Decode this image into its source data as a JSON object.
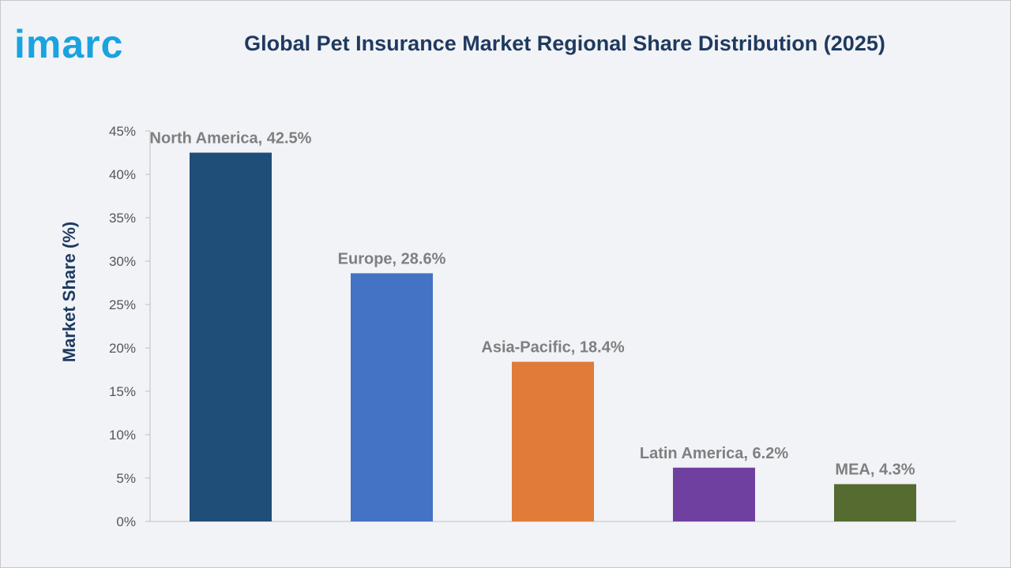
{
  "brand": {
    "logo_text": "imarc",
    "logo_color": "#1aa3df"
  },
  "chart_data": {
    "type": "bar",
    "title": "Global Pet Insurance Market Regional Share Distribution (2025)",
    "xlabel": "",
    "ylabel": "Market Share (%)",
    "ylim": [
      0,
      45
    ],
    "yticks": [
      0,
      5,
      10,
      15,
      20,
      25,
      30,
      35,
      40,
      45
    ],
    "ytick_labels": [
      "0%",
      "5%",
      "10%",
      "15%",
      "20%",
      "25%",
      "30%",
      "35%",
      "40%",
      "45%"
    ],
    "grid": false,
    "legend": "none",
    "categories": [
      "North America",
      "Europe",
      "Asia-Pacific",
      "Latin America",
      "MEA"
    ],
    "values": [
      42.5,
      28.6,
      18.4,
      6.2,
      4.3
    ],
    "data_labels": [
      "North America, 42.5%",
      "Europe, 28.6%",
      "Asia-Pacific, 18.4%",
      "Latin America, 6.2%",
      "MEA, 4.3%"
    ],
    "colors": [
      "#1f4e79",
      "#4472c4",
      "#e07b39",
      "#7040a0",
      "#556b2f"
    ]
  }
}
